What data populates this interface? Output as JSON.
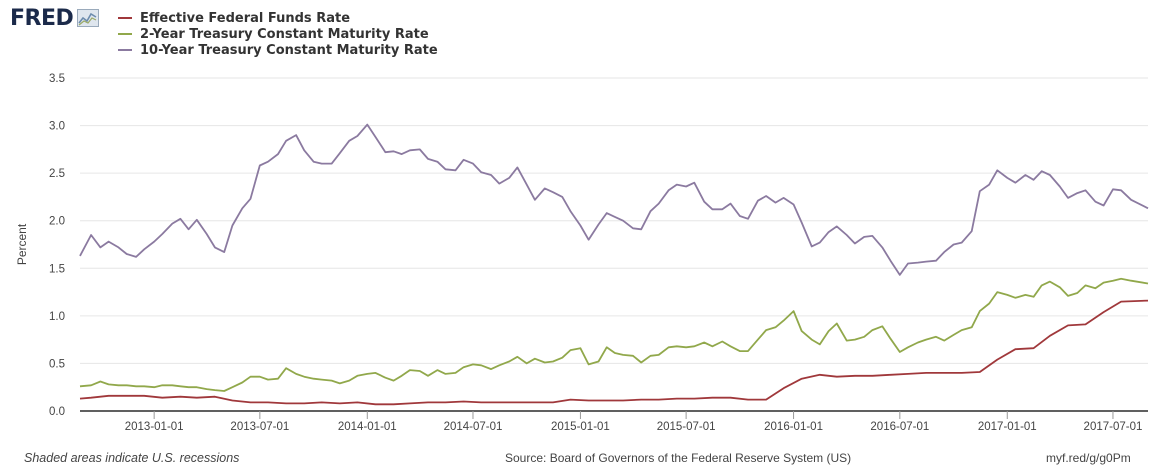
{
  "header": {
    "logo_text": "FRED",
    "logo_icon": "fred-chart-icon"
  },
  "footer": {
    "note": "Shaded areas indicate U.S. recessions",
    "source": "Source: Board of Governors of the Federal Reserve System (US)",
    "link": "myf.red/g/g0Pm"
  },
  "chart_data": {
    "type": "line",
    "ylabel": "Percent",
    "ylim": [
      0,
      3.5
    ],
    "yticks": [
      "0.0",
      "0.5",
      "1.0",
      "1.5",
      "2.0",
      "2.5",
      "3.0",
      "3.5"
    ],
    "xlim": [
      "2012-08-27",
      "2017-08-30"
    ],
    "xticks": [
      "2013-01-01",
      "2013-07-01",
      "2014-01-01",
      "2014-07-01",
      "2015-01-01",
      "2015-07-01",
      "2016-01-01",
      "2016-07-01",
      "2017-01-01",
      "2017-07-01"
    ],
    "grid": "horizontal",
    "legend_position": "top-left",
    "series": [
      {
        "name": "Effective Federal Funds Rate",
        "color": "#a0383b",
        "x": [
          "2012-08-27",
          "2012-09-15",
          "2012-10-15",
          "2012-11-15",
          "2012-12-15",
          "2013-01-15",
          "2013-02-15",
          "2013-03-15",
          "2013-04-15",
          "2013-05-15",
          "2013-06-15",
          "2013-07-15",
          "2013-08-15",
          "2013-09-15",
          "2013-10-15",
          "2013-11-15",
          "2013-12-15",
          "2014-01-15",
          "2014-02-15",
          "2014-03-15",
          "2014-04-15",
          "2014-05-15",
          "2014-06-15",
          "2014-07-15",
          "2014-08-15",
          "2014-09-15",
          "2014-10-15",
          "2014-11-15",
          "2014-12-15",
          "2015-01-15",
          "2015-02-15",
          "2015-03-15",
          "2015-04-15",
          "2015-05-15",
          "2015-06-15",
          "2015-07-15",
          "2015-08-15",
          "2015-09-15",
          "2015-10-15",
          "2015-11-15",
          "2015-12-15",
          "2016-01-15",
          "2016-02-15",
          "2016-03-15",
          "2016-04-15",
          "2016-05-15",
          "2016-06-15",
          "2016-07-15",
          "2016-08-15",
          "2016-09-15",
          "2016-10-15",
          "2016-11-15",
          "2016-12-15",
          "2017-01-15",
          "2017-02-15",
          "2017-03-15",
          "2017-04-15",
          "2017-05-15",
          "2017-06-15",
          "2017-07-15",
          "2017-08-30"
        ],
        "y": [
          0.13,
          0.14,
          0.16,
          0.16,
          0.16,
          0.14,
          0.15,
          0.14,
          0.15,
          0.11,
          0.09,
          0.09,
          0.08,
          0.08,
          0.09,
          0.08,
          0.09,
          0.07,
          0.07,
          0.08,
          0.09,
          0.09,
          0.1,
          0.09,
          0.09,
          0.09,
          0.09,
          0.09,
          0.12,
          0.11,
          0.11,
          0.11,
          0.12,
          0.12,
          0.13,
          0.13,
          0.14,
          0.14,
          0.12,
          0.12,
          0.24,
          0.34,
          0.38,
          0.36,
          0.37,
          0.37,
          0.38,
          0.39,
          0.4,
          0.4,
          0.4,
          0.41,
          0.54,
          0.65,
          0.66,
          0.79,
          0.9,
          0.91,
          1.04,
          1.15,
          1.16
        ]
      },
      {
        "name": "2-Year Treasury Constant Maturity Rate",
        "color": "#91a84b",
        "x": [
          "2012-08-27",
          "2012-09-15",
          "2012-10-01",
          "2012-10-15",
          "2012-11-01",
          "2012-11-15",
          "2012-12-01",
          "2012-12-15",
          "2013-01-01",
          "2013-01-15",
          "2013-02-01",
          "2013-02-15",
          "2013-03-01",
          "2013-03-15",
          "2013-04-01",
          "2013-04-15",
          "2013-05-01",
          "2013-05-15",
          "2013-06-01",
          "2013-06-15",
          "2013-07-01",
          "2013-07-15",
          "2013-08-01",
          "2013-08-15",
          "2013-09-01",
          "2013-09-15",
          "2013-10-01",
          "2013-10-15",
          "2013-11-01",
          "2013-11-15",
          "2013-12-01",
          "2013-12-15",
          "2014-01-01",
          "2014-01-15",
          "2014-02-01",
          "2014-02-15",
          "2014-03-01",
          "2014-03-15",
          "2014-04-01",
          "2014-04-15",
          "2014-05-01",
          "2014-05-15",
          "2014-06-01",
          "2014-06-15",
          "2014-07-01",
          "2014-07-15",
          "2014-08-01",
          "2014-08-15",
          "2014-09-01",
          "2014-09-15",
          "2014-10-01",
          "2014-10-15",
          "2014-11-01",
          "2014-11-15",
          "2014-12-01",
          "2014-12-15",
          "2015-01-01",
          "2015-01-15",
          "2015-02-01",
          "2015-02-15",
          "2015-03-01",
          "2015-03-15",
          "2015-04-01",
          "2015-04-15",
          "2015-05-01",
          "2015-05-15",
          "2015-06-01",
          "2015-06-15",
          "2015-07-01",
          "2015-07-15",
          "2015-08-01",
          "2015-08-15",
          "2015-09-01",
          "2015-09-15",
          "2015-10-01",
          "2015-10-15",
          "2015-11-01",
          "2015-11-15",
          "2015-12-01",
          "2015-12-15",
          "2016-01-01",
          "2016-01-15",
          "2016-02-01",
          "2016-02-15",
          "2016-03-01",
          "2016-03-15",
          "2016-04-01",
          "2016-04-15",
          "2016-05-01",
          "2016-05-15",
          "2016-06-01",
          "2016-06-15",
          "2016-07-01",
          "2016-07-15",
          "2016-08-01",
          "2016-08-15",
          "2016-09-01",
          "2016-09-15",
          "2016-10-01",
          "2016-10-15",
          "2016-11-01",
          "2016-11-15",
          "2016-12-01",
          "2016-12-15",
          "2017-01-01",
          "2017-01-15",
          "2017-02-01",
          "2017-02-15",
          "2017-03-01",
          "2017-03-15",
          "2017-04-01",
          "2017-04-15",
          "2017-05-01",
          "2017-05-15",
          "2017-06-01",
          "2017-06-15",
          "2017-07-01",
          "2017-07-15",
          "2017-08-01",
          "2017-08-30"
        ],
        "y": [
          0.26,
          0.27,
          0.31,
          0.28,
          0.27,
          0.27,
          0.26,
          0.26,
          0.25,
          0.27,
          0.27,
          0.26,
          0.25,
          0.25,
          0.23,
          0.22,
          0.21,
          0.25,
          0.3,
          0.36,
          0.36,
          0.33,
          0.34,
          0.45,
          0.39,
          0.36,
          0.34,
          0.33,
          0.32,
          0.29,
          0.32,
          0.37,
          0.39,
          0.4,
          0.35,
          0.32,
          0.37,
          0.43,
          0.42,
          0.37,
          0.43,
          0.39,
          0.4,
          0.46,
          0.49,
          0.48,
          0.44,
          0.48,
          0.52,
          0.57,
          0.5,
          0.55,
          0.51,
          0.52,
          0.56,
          0.64,
          0.66,
          0.49,
          0.52,
          0.67,
          0.61,
          0.59,
          0.58,
          0.51,
          0.58,
          0.59,
          0.67,
          0.68,
          0.67,
          0.68,
          0.72,
          0.68,
          0.73,
          0.68,
          0.63,
          0.63,
          0.75,
          0.85,
          0.88,
          0.95,
          1.05,
          0.84,
          0.75,
          0.7,
          0.84,
          0.92,
          0.74,
          0.75,
          0.78,
          0.85,
          0.89,
          0.76,
          0.62,
          0.67,
          0.72,
          0.75,
          0.78,
          0.74,
          0.8,
          0.85,
          0.88,
          1.05,
          1.13,
          1.25,
          1.22,
          1.19,
          1.22,
          1.2,
          1.32,
          1.36,
          1.3,
          1.21,
          1.24,
          1.32,
          1.29,
          1.35,
          1.37,
          1.39,
          1.37,
          1.34
        ]
      },
      {
        "name": "10-Year Treasury Constant Maturity Rate",
        "color": "#8b7aa0",
        "x": [
          "2012-08-27",
          "2012-09-15",
          "2012-10-01",
          "2012-10-15",
          "2012-11-01",
          "2012-11-15",
          "2012-12-01",
          "2012-12-15",
          "2013-01-01",
          "2013-01-15",
          "2013-02-01",
          "2013-02-15",
          "2013-03-01",
          "2013-03-15",
          "2013-04-01",
          "2013-04-15",
          "2013-05-01",
          "2013-05-15",
          "2013-06-01",
          "2013-06-15",
          "2013-07-01",
          "2013-07-15",
          "2013-08-01",
          "2013-08-15",
          "2013-09-01",
          "2013-09-15",
          "2013-10-01",
          "2013-10-15",
          "2013-11-01",
          "2013-11-15",
          "2013-12-01",
          "2013-12-15",
          "2014-01-01",
          "2014-01-15",
          "2014-02-01",
          "2014-02-15",
          "2014-03-01",
          "2014-03-15",
          "2014-04-01",
          "2014-04-15",
          "2014-05-01",
          "2014-05-15",
          "2014-06-01",
          "2014-06-15",
          "2014-07-01",
          "2014-07-15",
          "2014-08-01",
          "2014-08-15",
          "2014-09-01",
          "2014-09-15",
          "2014-10-01",
          "2014-10-15",
          "2014-11-01",
          "2014-11-15",
          "2014-12-01",
          "2014-12-15",
          "2015-01-01",
          "2015-01-15",
          "2015-02-01",
          "2015-02-15",
          "2015-03-01",
          "2015-03-15",
          "2015-04-01",
          "2015-04-15",
          "2015-05-01",
          "2015-05-15",
          "2015-06-01",
          "2015-06-15",
          "2015-07-01",
          "2015-07-15",
          "2015-08-01",
          "2015-08-15",
          "2015-09-01",
          "2015-09-15",
          "2015-10-01",
          "2015-10-15",
          "2015-11-01",
          "2015-11-15",
          "2015-12-01",
          "2015-12-15",
          "2016-01-01",
          "2016-01-15",
          "2016-02-01",
          "2016-02-15",
          "2016-03-01",
          "2016-03-15",
          "2016-04-01",
          "2016-04-15",
          "2016-05-01",
          "2016-05-15",
          "2016-06-01",
          "2016-06-15",
          "2016-07-01",
          "2016-07-15",
          "2016-08-01",
          "2016-08-15",
          "2016-09-01",
          "2016-09-15",
          "2016-10-01",
          "2016-10-15",
          "2016-11-01",
          "2016-11-15",
          "2016-12-01",
          "2016-12-15",
          "2017-01-01",
          "2017-01-15",
          "2017-02-01",
          "2017-02-15",
          "2017-03-01",
          "2017-03-15",
          "2017-04-01",
          "2017-04-15",
          "2017-05-01",
          "2017-05-15",
          "2017-06-01",
          "2017-06-15",
          "2017-07-01",
          "2017-07-15",
          "2017-08-01",
          "2017-08-30"
        ],
        "y": [
          1.63,
          1.85,
          1.72,
          1.78,
          1.72,
          1.65,
          1.62,
          1.7,
          1.78,
          1.86,
          1.97,
          2.02,
          1.91,
          2.01,
          1.86,
          1.72,
          1.67,
          1.95,
          2.13,
          2.23,
          2.58,
          2.62,
          2.7,
          2.84,
          2.9,
          2.74,
          2.62,
          2.6,
          2.6,
          2.71,
          2.84,
          2.89,
          3.01,
          2.88,
          2.72,
          2.73,
          2.7,
          2.74,
          2.75,
          2.65,
          2.62,
          2.54,
          2.53,
          2.64,
          2.6,
          2.51,
          2.48,
          2.39,
          2.45,
          2.56,
          2.38,
          2.22,
          2.34,
          2.3,
          2.25,
          2.1,
          1.95,
          1.8,
          1.96,
          2.08,
          2.04,
          2.0,
          1.92,
          1.91,
          2.1,
          2.18,
          2.32,
          2.38,
          2.36,
          2.4,
          2.2,
          2.12,
          2.12,
          2.18,
          2.05,
          2.02,
          2.21,
          2.26,
          2.19,
          2.24,
          2.17,
          1.98,
          1.73,
          1.77,
          1.88,
          1.94,
          1.85,
          1.76,
          1.83,
          1.84,
          1.72,
          1.58,
          1.43,
          1.55,
          1.56,
          1.57,
          1.58,
          1.67,
          1.75,
          1.77,
          1.89,
          2.31,
          2.38,
          2.53,
          2.45,
          2.4,
          2.48,
          2.43,
          2.52,
          2.48,
          2.36,
          2.24,
          2.29,
          2.32,
          2.2,
          2.16,
          2.33,
          2.32,
          2.22,
          2.13
        ]
      }
    ]
  }
}
